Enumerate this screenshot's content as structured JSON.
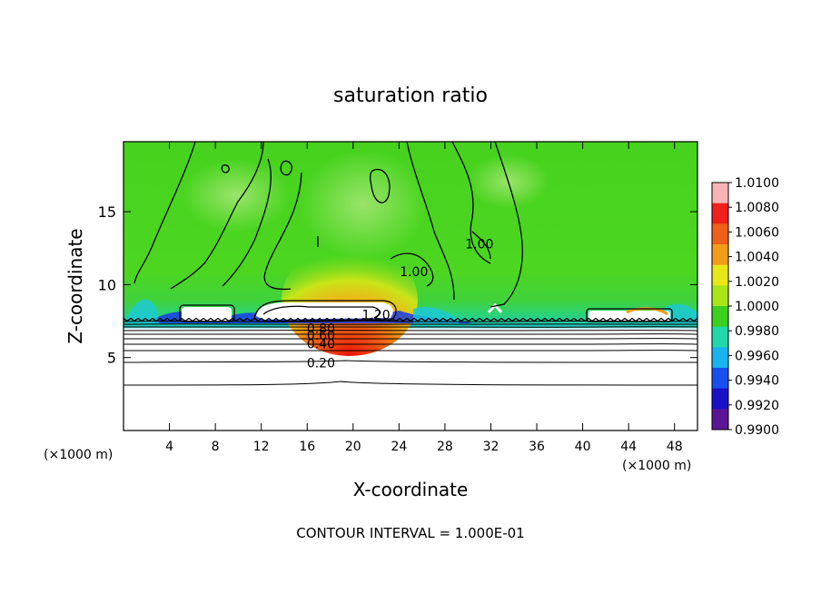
{
  "chart_data": {
    "type": "heatmap",
    "title": "saturation ratio",
    "xlabel": "X-coordinate",
    "ylabel": "Z-coordinate",
    "x_unit_left": "(×1000 m)",
    "x_unit_right": "(×1000 m)",
    "footer": "CONTOUR INTERVAL = 1.000E-01",
    "xlim": [
      0,
      50
    ],
    "ylim": [
      0,
      19.8
    ],
    "x_ticks": [
      4,
      8,
      12,
      16,
      20,
      24,
      28,
      32,
      36,
      40,
      44,
      48
    ],
    "y_ticks": [
      5,
      10,
      15
    ],
    "colorbar": {
      "levels": [
        "1.0100",
        "1.0080",
        "1.0060",
        "1.0040",
        "1.0020",
        "1.0000",
        "0.9980",
        "0.9960",
        "0.9940",
        "0.9920",
        "0.9900"
      ],
      "colors": [
        "#f8b4b4",
        "#f0201a",
        "#f06018",
        "#f09c18",
        "#e8e818",
        "#a8e418",
        "#3cd01e",
        "#20d8a8",
        "#18b4f0",
        "#1850f0",
        "#1a10c8",
        "#5a1496"
      ]
    },
    "contour_labels": [
      {
        "text": "1.00",
        "x": 25.3,
        "z": 10.9
      },
      {
        "text": "1.00",
        "x": 31.0,
        "z": 12.8
      },
      {
        "text": "1.20",
        "x": 22.0,
        "z": 7.95
      },
      {
        "text": "0.80",
        "x": 17.2,
        "z": 7.0
      },
      {
        "text": "0.60",
        "x": 17.2,
        "z": 6.55
      },
      {
        "text": "0.40",
        "x": 17.2,
        "z": 5.95
      },
      {
        "text": "0.20",
        "x": 17.2,
        "z": 4.65
      }
    ]
  }
}
